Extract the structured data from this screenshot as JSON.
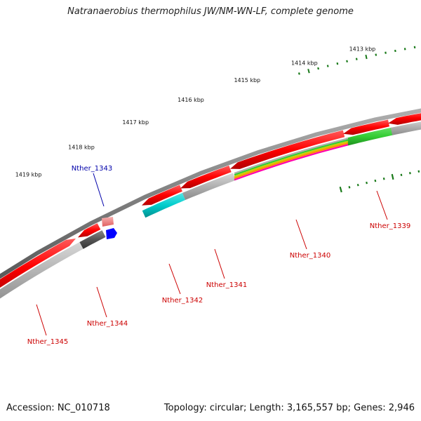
{
  "title": "Natranaerobius thermophilus JW/NM-WN-LF, complete genome",
  "footer": {
    "accession": "Accession: NC_010718",
    "summary": "Topology: circular; Length: 3,165,557 bp; Genes: 2,946"
  },
  "ruler": {
    "color": "#1a7a1a",
    "labels": [
      "1413 kbp",
      "1414 kbp",
      "1415 kbp",
      "1416 kbp",
      "1417 kbp",
      "1418 kbp",
      "1419 kbp"
    ]
  },
  "genes": [
    {
      "name": "Nther_1339",
      "color": "#cc0000"
    },
    {
      "name": "Nther_1340",
      "color": "#cc0000"
    },
    {
      "name": "Nther_1341",
      "color": "#cc0000"
    },
    {
      "name": "Nther_1342",
      "color": "#cc0000"
    },
    {
      "name": "Nther_1343",
      "color": "#0000aa"
    },
    {
      "name": "Nther_1344",
      "color": "#cc0000"
    },
    {
      "name": "Nther_1345",
      "color": "#cc0000"
    }
  ],
  "colors": {
    "backbone": "#808080",
    "cds": "#ff0000",
    "rna": "#f08080",
    "blue_feature": "#0000ff",
    "cog_gray": "#b0b0b0",
    "cog_dark": "#555555",
    "cog_green": "#33cc33",
    "cog_cyan": "#00cccc"
  }
}
